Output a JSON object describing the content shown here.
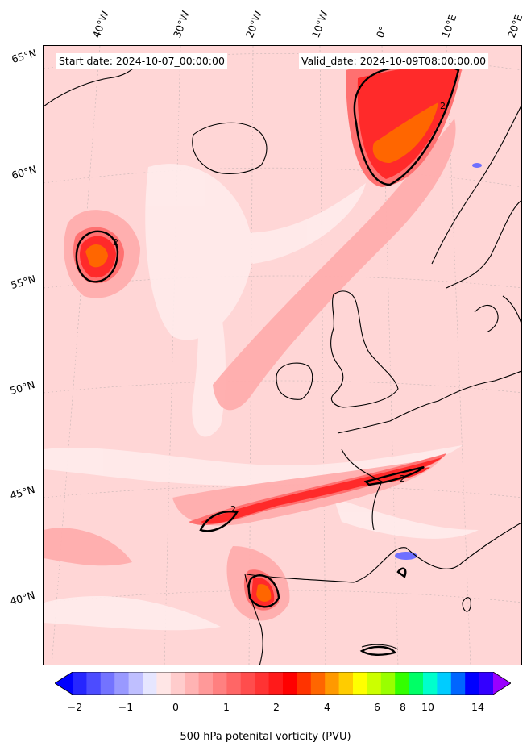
{
  "header": {
    "start_date": "Start date: 2024-10-07_00:00:00",
    "valid_date": "Valid_date: 2024-10-09T08:00:00.00"
  },
  "longitude_labels": [
    "40°W",
    "30°W",
    "20°W",
    "10°W",
    "0°",
    "10°E",
    "20°E"
  ],
  "latitude_labels": [
    "65°N",
    "60°N",
    "55°N",
    "50°N",
    "45°N",
    "40°N"
  ],
  "colorbar": {
    "title": "500 hPa potenital vorticity (PVU)",
    "ticks": [
      "−2",
      "−1",
      "0",
      "1",
      "2",
      "4",
      "6",
      "8",
      "10",
      "14"
    ],
    "colors": [
      "#0000ff",
      "#2626ff",
      "#4c4cff",
      "#7373ff",
      "#9999ff",
      "#bfbfff",
      "#e6e6ff",
      "#ffe6e6",
      "#ffcccc",
      "#ffb3b3",
      "#ff9999",
      "#ff8080",
      "#ff6666",
      "#ff4d4d",
      "#ff3333",
      "#ff1a1a",
      "#ff0000",
      "#ff3300",
      "#ff6600",
      "#ff9900",
      "#ffcc00",
      "#ffff00",
      "#ccff00",
      "#99ff00",
      "#33ff00",
      "#00ff66",
      "#00ffcc",
      "#00ccff",
      "#0066ff",
      "#0000ff",
      "#3300ff",
      "#9900ff"
    ]
  },
  "contour_label": "2",
  "field_colors": {
    "background": "#ffd6d6",
    "light": "#ffecec",
    "mid": "#ffadad",
    "strong": "#ff7070",
    "core": "#ff2a2a",
    "peak": "#ff6600",
    "negative": "#6f6fff",
    "coast": "#000000"
  }
}
